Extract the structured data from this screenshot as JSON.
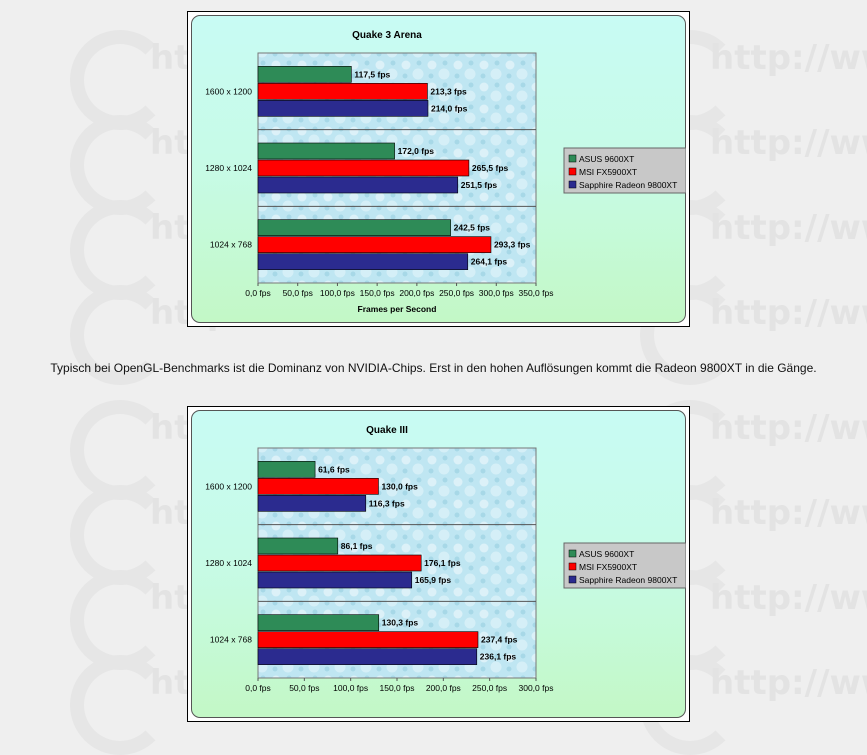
{
  "caption": "Typisch bei OpenGL-Benchmarks ist die Dominanz von NVIDIA-Chips. Erst in den hohen Auflösungen kommt die Radeon 9800XT in die Gänge.",
  "watermark_text": "http://www",
  "colors": {
    "asus": "#2e8b57",
    "msi": "#ff0000",
    "sapphire": "#2b2b8f",
    "plot_bg": "#bfe6f2",
    "legend_bg": "#c8c8c8"
  },
  "chart_data": [
    {
      "type": "bar",
      "orientation": "horizontal",
      "title": "Quake 3 Arena",
      "xlabel": "Frames per Second",
      "ylabel": "",
      "categories": [
        "1600 x 1200",
        "1280 x 1024",
        "1024 x 768"
      ],
      "xlim": [
        0,
        350
      ],
      "x_ticks": [
        "0,0 fps",
        "50,0 fps",
        "100,0 fps",
        "150,0 fps",
        "200,0 fps",
        "250,0 fps",
        "300,0 fps",
        "350,0 fps"
      ],
      "legend_position": "right",
      "series": [
        {
          "name": "ASUS 9600XT",
          "values": [
            117.5,
            172.0,
            242.5
          ],
          "labels": [
            "117,5 fps",
            "172,0 fps",
            "242,5 fps"
          ]
        },
        {
          "name": "MSI FX5900XT",
          "values": [
            213.3,
            265.5,
            293.3
          ],
          "labels": [
            "213,3 fps",
            "265,5 fps",
            "293,3 fps"
          ]
        },
        {
          "name": "Sapphire Radeon 9800XT",
          "values": [
            214.0,
            251.5,
            264.1
          ],
          "labels": [
            "214,0 fps",
            "251,5 fps",
            "264,1 fps"
          ]
        }
      ]
    },
    {
      "type": "bar",
      "orientation": "horizontal",
      "title": "Quake III",
      "xlabel": "",
      "ylabel": "",
      "categories": [
        "1600 x 1200",
        "1280 x 1024",
        "1024 x 768"
      ],
      "xlim": [
        0,
        300
      ],
      "x_ticks": [
        "0,0 fps",
        "50,0 fps",
        "100,0 fps",
        "150,0 fps",
        "200,0 fps",
        "250,0 fps",
        "300,0 fps"
      ],
      "legend_position": "right",
      "series": [
        {
          "name": "ASUS 9600XT",
          "values": [
            61.6,
            86.1,
            130.3
          ],
          "labels": [
            "61,6 fps",
            "86,1 fps",
            "130,3 fps"
          ]
        },
        {
          "name": "MSI FX5900XT",
          "values": [
            130.0,
            176.1,
            237.4
          ],
          "labels": [
            "130,0 fps",
            "176,1 fps",
            "237,4 fps"
          ]
        },
        {
          "name": "Sapphire Radeon 9800XT",
          "values": [
            116.3,
            165.9,
            236.1
          ],
          "labels": [
            "116,3 fps",
            "165,9 fps",
            "236,1 fps"
          ]
        }
      ]
    }
  ]
}
